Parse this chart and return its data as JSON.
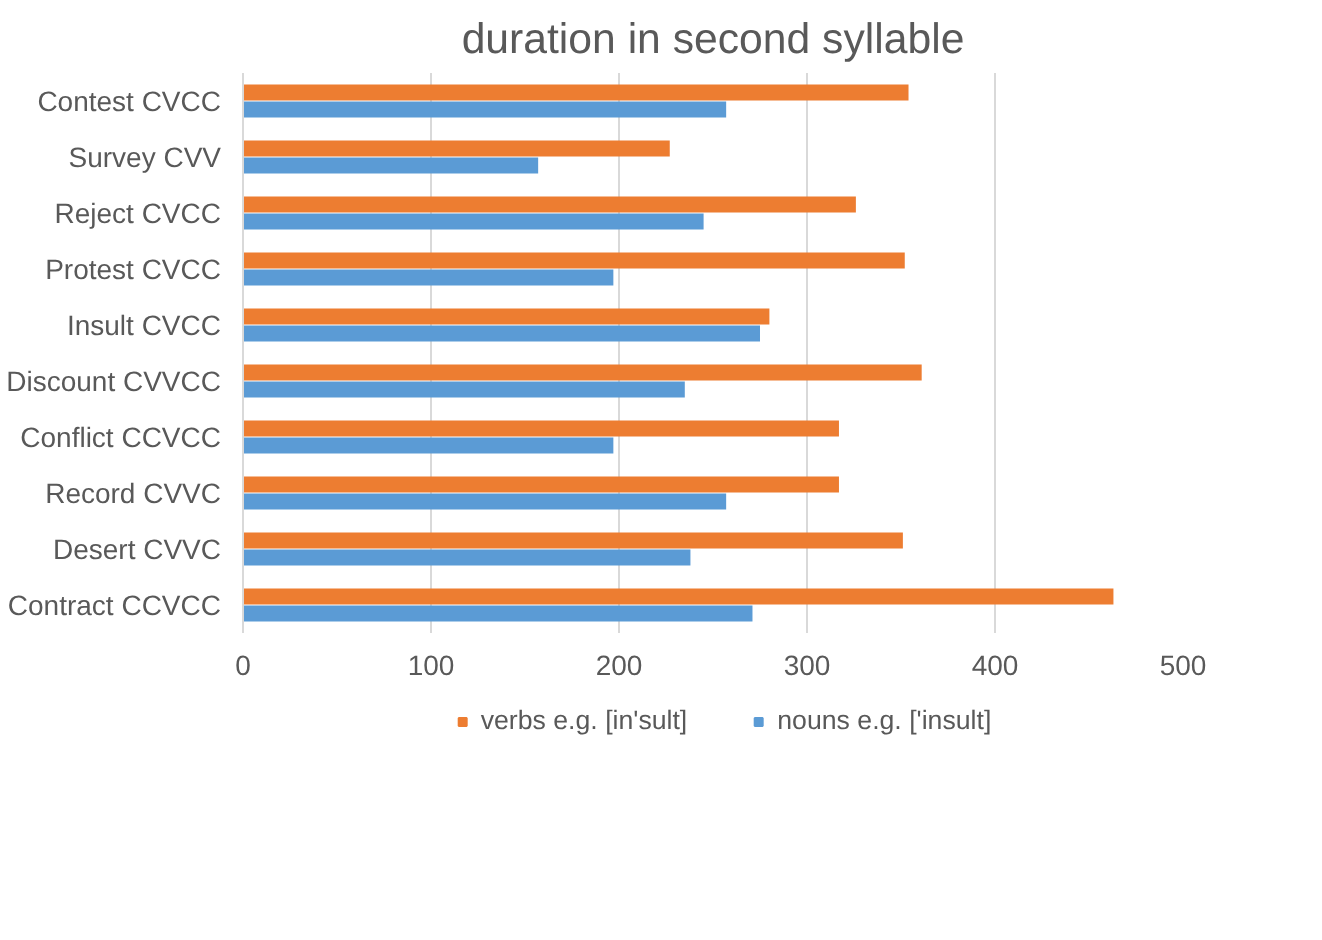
{
  "chart_data": {
    "type": "bar",
    "orientation": "horizontal",
    "title": "duration in second syllable",
    "categories": [
      "Contest CVCC",
      "Survey CVV",
      "Reject CVCC",
      "Protest CVCC",
      "Insult CVCC",
      "Discount CVVCC",
      "Conflict CCVCC",
      "Record CVVC",
      "Desert CVVC",
      "Contract CCVCC"
    ],
    "series": [
      {
        "name": "verbs e.g. [in'sult]",
        "color": "#ed7d31",
        "values": [
          354,
          227,
          326,
          352,
          280,
          361,
          317,
          317,
          351,
          463
        ]
      },
      {
        "name": "nouns e.g. ['insult]",
        "color": "#5b9bd5",
        "values": [
          257,
          157,
          245,
          197,
          275,
          235,
          197,
          257,
          238,
          271
        ]
      }
    ],
    "xlim": [
      0,
      500
    ],
    "xticks": [
      0,
      100,
      200,
      300,
      400,
      500
    ],
    "grid": "x",
    "legend": "bottom"
  }
}
